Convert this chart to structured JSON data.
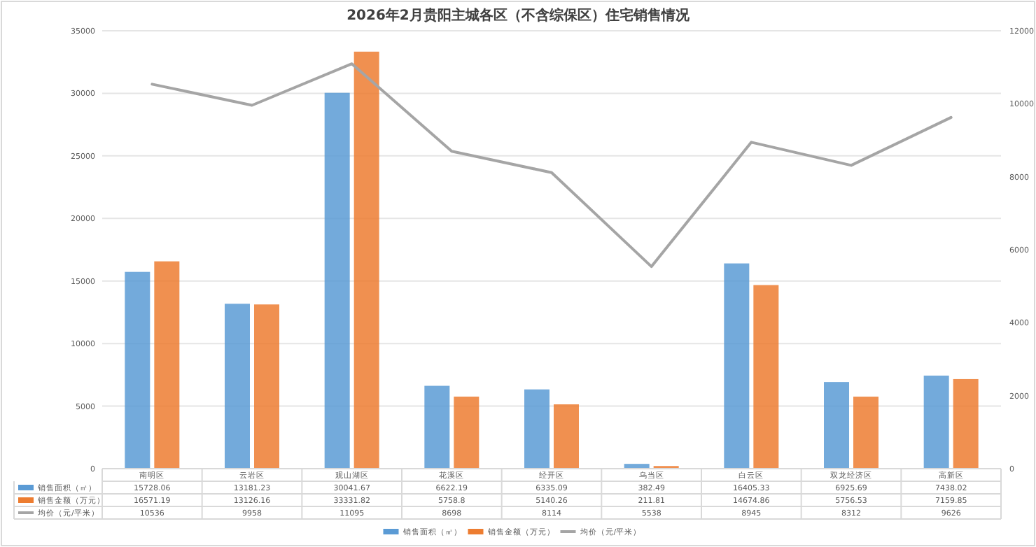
{
  "chart_data": {
    "type": "bar",
    "title": "2026年2月贵阳主城各区（不含综保区）住宅销售情况",
    "categories": [
      "南明区",
      "云岩区",
      "观山湖区",
      "花溪区",
      "经开区",
      "乌当区",
      "白云区",
      "双龙经济区",
      "高新区"
    ],
    "series": [
      {
        "name": "销售面积（㎡）",
        "color": "#5b9bd5",
        "values": [
          15728.06,
          13181.23,
          30041.67,
          6622.19,
          6335.09,
          382.49,
          16405.33,
          6925.69,
          7438.02
        ]
      },
      {
        "name": "销售金额（万元）",
        "color": "#ed7d31",
        "values": [
          16571.19,
          13126.16,
          33331.82,
          5758.8,
          5140.26,
          211.81,
          14674.86,
          5756.53,
          7159.85
        ]
      },
      {
        "name": "均价（元/平米）",
        "type": "line",
        "axis": "y2",
        "color": "#a5a5a5",
        "values": [
          10536,
          9958,
          11095,
          8698,
          8114,
          5538,
          8945,
          8312,
          9626
        ]
      }
    ],
    "ylim": [
      0,
      35000
    ],
    "yticks": [
      0,
      5000,
      10000,
      15000,
      20000,
      25000,
      30000,
      35000
    ],
    "y2lim": [
      0,
      12000
    ],
    "y2ticks": [
      0,
      2000,
      4000,
      6000,
      8000,
      10000,
      12000
    ],
    "grid": "y",
    "legend": "bottom",
    "data_labels": true,
    "marker": "none"
  }
}
